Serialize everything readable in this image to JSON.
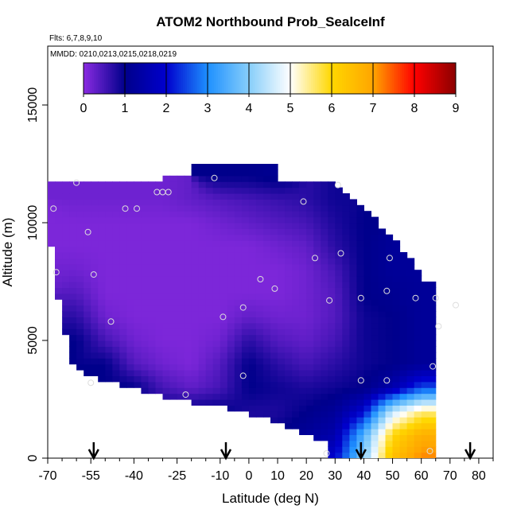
{
  "chart_data": {
    "type": "heatmap",
    "title": "ATOM2 Northbound Prob_SealceInf",
    "subtitle_flights": "Flts: 6,7,8,9,10",
    "subtitle_dates": "MMDD: 0210,0213,0215,0218,0219",
    "xlabel": "Latitude (deg N)",
    "ylabel": "Altitude (m)",
    "xlim": [
      -70,
      85
    ],
    "ylim": [
      0,
      17500
    ],
    "x_ticks": [
      -70,
      -55,
      -40,
      -25,
      -10,
      0,
      10,
      20,
      30,
      40,
      50,
      60,
      70,
      80
    ],
    "y_ticks": [
      0,
      5000,
      10000,
      15000
    ],
    "colorbar": {
      "range": [
        0,
        9
      ],
      "ticks": [
        0,
        1,
        2,
        3,
        4,
        5,
        6,
        7,
        8,
        9
      ],
      "colors": [
        "#8a2be2",
        "#00008b",
        "#0000cd",
        "#1e90ff",
        "#87cefa",
        "#ffffff",
        "#ffd700",
        "#ffa500",
        "#ff0000",
        "#8b0000"
      ]
    },
    "profile_markers_lat": [
      -54,
      -8,
      39,
      77
    ],
    "envelope": {
      "top": [
        [
          -65,
          11800
        ],
        [
          -30,
          11800
        ],
        [
          -20,
          12400
        ],
        [
          10,
          12400
        ],
        [
          10,
          11800
        ],
        [
          30,
          11800
        ],
        [
          35,
          11000
        ],
        [
          45,
          10000
        ],
        [
          55,
          8700
        ],
        [
          60,
          7600
        ],
        [
          73,
          7000
        ],
        [
          73,
          6000
        ],
        [
          68,
          4000
        ],
        [
          67,
          2000
        ],
        [
          65,
          800
        ],
        [
          64,
          0
        ]
      ],
      "bottom": [
        [
          -70,
          10600
        ],
        [
          -68,
          8000
        ],
        [
          -65,
          6000
        ],
        [
          -62,
          4000
        ],
        [
          -55,
          3500
        ],
        [
          -40,
          3000
        ],
        [
          -25,
          2500
        ],
        [
          -10,
          2200
        ],
        [
          10,
          1500
        ],
        [
          20,
          1000
        ],
        [
          27,
          600
        ],
        [
          28,
          0
        ]
      ]
    },
    "values_grid": {
      "lat": [
        -70,
        -60,
        -50,
        -40,
        -30,
        -20,
        -10,
        0,
        10,
        20,
        30,
        40,
        50,
        60,
        70
      ],
      "alt": [
        0,
        1000,
        2000,
        3000,
        4000,
        5000,
        6000,
        7000,
        8000,
        9000,
        10000,
        11000,
        12000
      ],
      "z": [
        [
          null,
          null,
          null,
          null,
          null,
          null,
          null,
          null,
          null,
          null,
          2,
          4,
          6.5,
          7.2,
          null
        ],
        [
          null,
          null,
          null,
          null,
          null,
          null,
          null,
          null,
          1,
          1.2,
          1.5,
          3.5,
          6,
          6.8,
          null
        ],
        [
          null,
          null,
          null,
          null,
          1,
          1,
          1,
          0.8,
          0.8,
          1,
          1.2,
          2,
          4.5,
          5.5,
          null
        ],
        [
          null,
          null,
          1,
          1,
          0.5,
          0.3,
          0.5,
          1,
          0.9,
          0.8,
          0.9,
          1,
          1.5,
          2.5,
          null
        ],
        [
          null,
          null,
          1,
          0.4,
          0.2,
          0.1,
          0.4,
          1,
          0.7,
          0.5,
          0.7,
          0.9,
          1,
          1.2,
          null
        ],
        [
          null,
          1,
          0.5,
          0.2,
          0.1,
          0.1,
          0.2,
          0.7,
          0.4,
          0.3,
          0.5,
          0.9,
          1,
          1.2,
          1.2
        ],
        [
          null,
          0.7,
          0.2,
          0.1,
          0.1,
          0.1,
          0.1,
          0.3,
          0.2,
          0.2,
          0.4,
          0.9,
          1,
          1.2,
          1.2
        ],
        [
          null,
          0.4,
          0.1,
          0.1,
          0.1,
          0.1,
          0.1,
          0.1,
          0.1,
          0.2,
          0.4,
          1,
          1.1,
          1.2,
          null
        ],
        [
          0.2,
          0.2,
          0.1,
          0.1,
          0.1,
          0.1,
          0.1,
          0.1,
          0.1,
          0.2,
          0.5,
          1,
          1.2,
          null,
          null
        ],
        [
          0.1,
          0.1,
          0.1,
          0.1,
          0.1,
          0.1,
          0.1,
          0.1,
          0.2,
          0.3,
          0.7,
          1,
          1.2,
          null,
          null
        ],
        [
          0.1,
          0.1,
          0.1,
          0.1,
          0.1,
          0.1,
          0.2,
          0.3,
          0.4,
          0.5,
          0.8,
          1,
          null,
          null,
          null
        ],
        [
          null,
          0.2,
          0.2,
          0.2,
          0.2,
          0.3,
          0.4,
          0.5,
          0.6,
          0.7,
          0.9,
          null,
          null,
          null,
          null
        ],
        [
          null,
          null,
          null,
          null,
          null,
          null,
          1,
          1,
          1.1,
          null,
          null,
          null,
          null,
          null,
          null
        ]
      ]
    },
    "sample_points": [
      [
        -60,
        11700
      ],
      [
        -43,
        10600
      ],
      [
        -56,
        9600
      ],
      [
        -39,
        10600
      ],
      [
        -68,
        10600
      ],
      [
        -32,
        11300
      ],
      [
        -30,
        11300
      ],
      [
        -28,
        11300
      ],
      [
        -12,
        11900
      ],
      [
        -67,
        7900
      ],
      [
        -54,
        7800
      ],
      [
        -48,
        5800
      ],
      [
        -9,
        6000
      ],
      [
        -2,
        6400
      ],
      [
        4,
        7600
      ],
      [
        9,
        7200
      ],
      [
        19,
        10900
      ],
      [
        23,
        8500
      ],
      [
        31,
        11600
      ],
      [
        32,
        8700
      ],
      [
        28,
        6700
      ],
      [
        39,
        6800
      ],
      [
        49,
        8500
      ],
      [
        48,
        7100
      ],
      [
        58,
        6800
      ],
      [
        65,
        6800
      ],
      [
        72,
        6500
      ],
      [
        66,
        5600
      ],
      [
        64,
        3900
      ],
      [
        39,
        3300
      ],
      [
        48,
        3300
      ],
      [
        -55,
        3200
      ],
      [
        -22,
        2700
      ],
      [
        -2,
        3500
      ],
      [
        27,
        200
      ],
      [
        63,
        300
      ]
    ]
  }
}
